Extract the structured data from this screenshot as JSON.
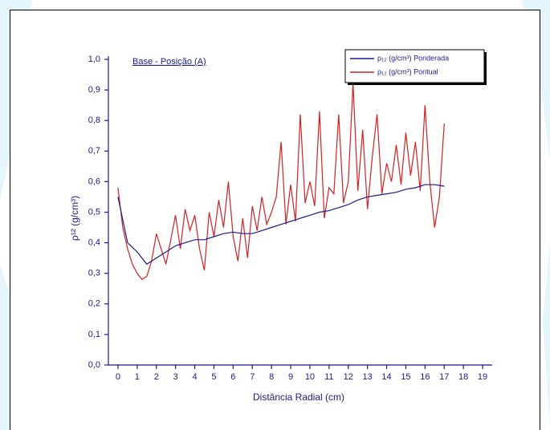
{
  "chart_data": {
    "type": "line",
    "annotation": "Base - Posição (A)",
    "x_label": "Distância Radial (cm)",
    "y_label": "ρ¹² (g/cm³)",
    "xlim": [
      -0.5,
      19.5
    ],
    "ylim": [
      0,
      1
    ],
    "xticks": [
      0,
      1,
      2,
      3,
      4,
      5,
      6,
      7,
      8,
      9,
      10,
      11,
      12,
      13,
      14,
      15,
      16,
      17,
      18,
      19
    ],
    "yticks": [
      {
        "value": 0,
        "label": "0,0"
      },
      {
        "value": 0.1,
        "label": "0,1"
      },
      {
        "value": 0.2,
        "label": "0,2"
      },
      {
        "value": 0.3,
        "label": "0,3"
      },
      {
        "value": 0.4,
        "label": "0,4"
      },
      {
        "value": 0.5,
        "label": "0,5"
      },
      {
        "value": 0.6,
        "label": "0,6"
      },
      {
        "value": 0.7,
        "label": "0,7"
      },
      {
        "value": 0.8,
        "label": "0,8"
      },
      {
        "value": 0.9,
        "label": "0,9"
      },
      {
        "value": 1,
        "label": "1,0"
      }
    ],
    "series": [
      {
        "name": "ρ₁₂ (g/cm³) Ponderada",
        "color": "#1a1a8c",
        "x": [
          0,
          0.5,
          1,
          1.5,
          2,
          2.5,
          3,
          3.5,
          4,
          4.5,
          5,
          5.5,
          6,
          6.5,
          7,
          7.5,
          8,
          8.5,
          9,
          9.5,
          10,
          10.5,
          11,
          11.5,
          12,
          12.5,
          13,
          13.5,
          14,
          14.5,
          15,
          15.5,
          16,
          16.5,
          17
        ],
        "values": [
          0.55,
          0.4,
          0.37,
          0.33,
          0.35,
          0.37,
          0.39,
          0.4,
          0.41,
          0.41,
          0.42,
          0.43,
          0.435,
          0.43,
          0.43,
          0.44,
          0.45,
          0.46,
          0.47,
          0.48,
          0.49,
          0.5,
          0.505,
          0.515,
          0.525,
          0.54,
          0.55,
          0.555,
          0.56,
          0.565,
          0.575,
          0.58,
          0.59,
          0.59,
          0.585
        ]
      },
      {
        "name": "ρ₁₂ (g/cm³) Pontual",
        "color": "#d42020",
        "x": [
          0,
          0.25,
          0.5,
          0.75,
          1,
          1.25,
          1.5,
          1.75,
          2,
          2.25,
          2.5,
          2.75,
          3,
          3.25,
          3.5,
          3.75,
          4,
          4.25,
          4.5,
          4.75,
          5,
          5.25,
          5.5,
          5.75,
          6,
          6.25,
          6.5,
          6.75,
          7,
          7.25,
          7.5,
          7.75,
          8,
          8.25,
          8.5,
          8.75,
          9,
          9.25,
          9.5,
          9.75,
          10,
          10.25,
          10.5,
          10.75,
          11,
          11.25,
          11.5,
          11.75,
          12,
          12.25,
          12.5,
          12.75,
          13,
          13.25,
          13.5,
          13.75,
          14,
          14.25,
          14.5,
          14.75,
          15,
          15.25,
          15.5,
          15.75,
          16,
          16.25,
          16.5,
          16.75,
          17
        ],
        "values": [
          0.58,
          0.45,
          0.38,
          0.33,
          0.3,
          0.28,
          0.29,
          0.34,
          0.43,
          0.38,
          0.33,
          0.41,
          0.49,
          0.38,
          0.51,
          0.44,
          0.49,
          0.38,
          0.31,
          0.5,
          0.42,
          0.54,
          0.45,
          0.6,
          0.42,
          0.34,
          0.48,
          0.35,
          0.52,
          0.44,
          0.55,
          0.46,
          0.5,
          0.55,
          0.73,
          0.46,
          0.59,
          0.47,
          0.82,
          0.53,
          0.6,
          0.52,
          0.83,
          0.48,
          0.58,
          0.56,
          0.82,
          0.53,
          0.6,
          0.92,
          0.57,
          0.77,
          0.51,
          0.68,
          0.82,
          0.56,
          0.66,
          0.6,
          0.72,
          0.59,
          0.76,
          0.62,
          0.73,
          0.57,
          0.85,
          0.6,
          0.45,
          0.55,
          0.79
        ]
      }
    ]
  }
}
